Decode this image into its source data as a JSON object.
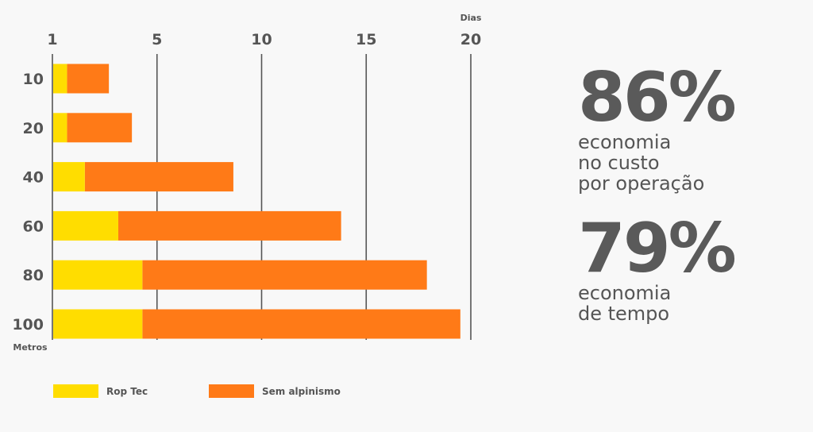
{
  "chart_data": {
    "type": "bar",
    "orientation": "horizontal",
    "xlabel": "Dias",
    "ylabel": "Metros",
    "x_ticks": [
      {
        "label": "1",
        "value": 0
      },
      {
        "label": "5",
        "value": 5
      },
      {
        "label": "10",
        "value": 10
      },
      {
        "label": "15",
        "value": 15
      },
      {
        "label": "20",
        "value": 20
      }
    ],
    "xlim": [
      0,
      20
    ],
    "categories": [
      "10",
      "20",
      "40",
      "60",
      "80",
      "100"
    ],
    "series": [
      {
        "name": "Rop Tec",
        "color": "#ffdd00",
        "values": [
          0.7,
          0.7,
          1.55,
          3.15,
          4.3,
          4.3
        ]
      },
      {
        "name": "Sem alpinismo",
        "color": "#ff7a17",
        "values": [
          2.7,
          3.8,
          8.65,
          13.8,
          17.9,
          19.5
        ]
      }
    ],
    "grid": true,
    "legend": "bottom"
  },
  "stats": [
    {
      "value": "86%",
      "lines": [
        "economia",
        "no custo",
        "por operação"
      ]
    },
    {
      "value": "79%",
      "lines": [
        "economia",
        "de tempo"
      ]
    }
  ]
}
